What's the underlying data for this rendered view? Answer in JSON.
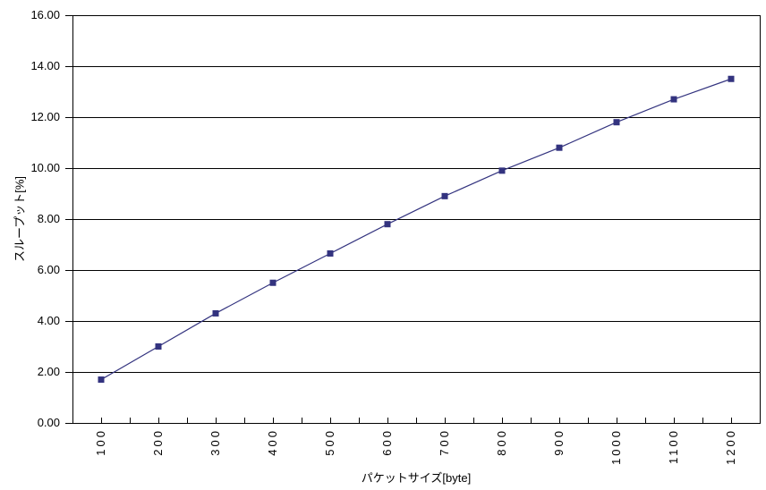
{
  "chart_data": {
    "type": "line",
    "xlabel": "パケットサイズ[byte]",
    "ylabel": "スループット[%]",
    "x_categories": [
      "100",
      "200",
      "300",
      "400",
      "500",
      "600",
      "700",
      "800",
      "900",
      "1000",
      "1100",
      "1200"
    ],
    "series": [
      {
        "name": "スループット",
        "values": [
          1.7,
          3.0,
          4.3,
          5.5,
          6.65,
          7.8,
          8.9,
          9.9,
          10.8,
          11.8,
          12.7,
          13.5
        ]
      }
    ],
    "ylim": [
      0,
      16
    ],
    "y_tick_step": 2,
    "y_tick_labels": [
      "0.00",
      "2.00",
      "4.00",
      "6.00",
      "8.00",
      "10.00",
      "12.00",
      "14.00",
      "16.00"
    ],
    "grid": "horizontal-major",
    "legend_position": "none",
    "marker": "square",
    "colors": {
      "series": "#33337F",
      "axis": "#000000",
      "grid": "#000000",
      "background": "#FFFFFF",
      "text": "#000000"
    }
  }
}
